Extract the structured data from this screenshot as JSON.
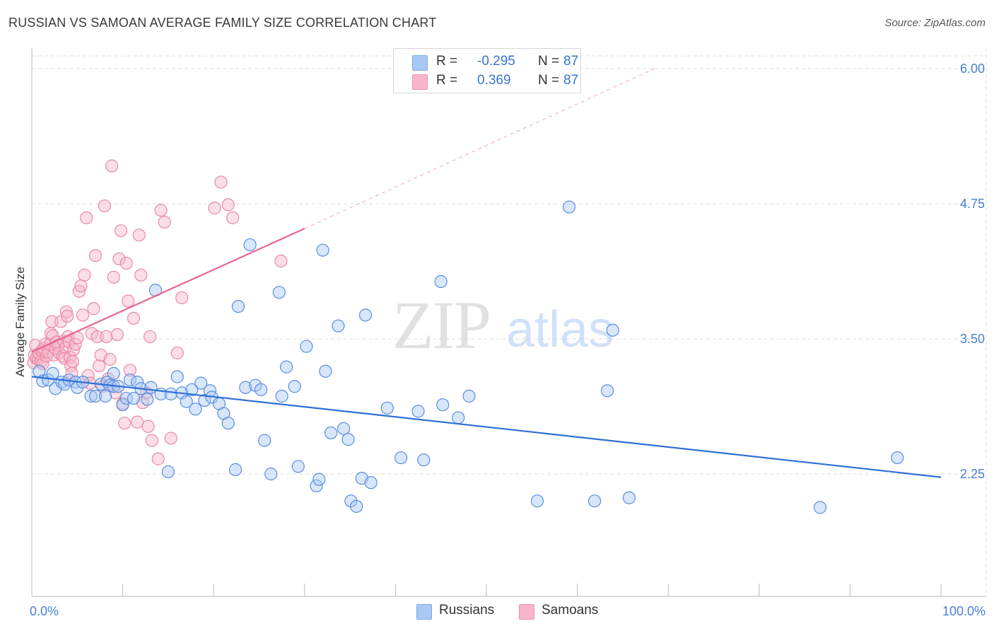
{
  "title": "RUSSIAN VS SAMOAN AVERAGE FAMILY SIZE CORRELATION CHART",
  "source": "Source: ZipAtlas.com",
  "watermark": {
    "zip": "ZIP",
    "atlas": "atlas"
  },
  "legend_top": {
    "rows": [
      {
        "r_label": "R =",
        "r_value": "-0.295",
        "n_label": "N =",
        "n_value": "87",
        "color": "#a9c8f3"
      },
      {
        "r_label": "R =",
        "r_value": " 0.369",
        "n_label": "N =",
        "n_value": "87",
        "color": "#f7b6c9"
      }
    ]
  },
  "legend_bottom": [
    {
      "label": "Russians",
      "color": "#a9c8f3"
    },
    {
      "label": "Samoans",
      "color": "#f7b6c9"
    }
  ],
  "colors": {
    "russians_fill": "#a9c8f3",
    "russians_stroke": "#5a8ee0",
    "russians_line": "#2d6fd6",
    "samoans_fill": "#f7b6c9",
    "samoans_stroke": "#e98aa6",
    "samoans_line": "#e8668f",
    "axis_label": "#4a7fd1",
    "grid": "#dedede"
  },
  "chart_data": {
    "type": "scatter",
    "title": "RUSSIAN VS SAMOAN AVERAGE FAMILY SIZE CORRELATION CHART",
    "xlabel": "",
    "ylabel": "Average Family Size",
    "x_tick_labels": [
      "0.0%",
      "100.0%"
    ],
    "y_tick_labels": [
      "2.25",
      "3.50",
      "4.75",
      "6.00"
    ],
    "y_ticks": [
      2.25,
      3.5,
      4.75,
      6.0
    ],
    "xlim": [
      0,
      100
    ],
    "ylim": [
      1.2,
      6.15
    ],
    "grid": true,
    "legend_position": "top-center",
    "series": [
      {
        "name": "Russians",
        "r": -0.295,
        "n": 87,
        "trend": {
          "x": [
            0,
            100
          ],
          "y": [
            3.15,
            2.22
          ]
        },
        "points": [
          [
            0.8,
            3.2
          ],
          [
            1.2,
            3.11
          ],
          [
            1.8,
            3.12
          ],
          [
            2.3,
            3.18
          ],
          [
            2.6,
            3.04
          ],
          [
            3.3,
            3.1
          ],
          [
            3.6,
            3.08
          ],
          [
            4.1,
            3.12
          ],
          [
            4.8,
            3.1
          ],
          [
            5.0,
            3.05
          ],
          [
            5.6,
            3.1
          ],
          [
            6.5,
            2.97
          ],
          [
            7.0,
            2.97
          ],
          [
            7.6,
            3.08
          ],
          [
            8.1,
            2.97
          ],
          [
            8.3,
            3.1
          ],
          [
            8.6,
            3.07
          ],
          [
            9.0,
            3.18
          ],
          [
            9.0,
            3.06
          ],
          [
            9.5,
            3.06
          ],
          [
            10.0,
            2.89
          ],
          [
            10.4,
            2.95
          ],
          [
            10.8,
            3.12
          ],
          [
            11.2,
            2.95
          ],
          [
            11.6,
            3.1
          ],
          [
            12.0,
            3.04
          ],
          [
            12.7,
            2.94
          ],
          [
            13.1,
            3.05
          ],
          [
            13.6,
            3.95
          ],
          [
            14.2,
            2.99
          ],
          [
            15.0,
            2.27
          ],
          [
            15.3,
            2.99
          ],
          [
            16.0,
            3.15
          ],
          [
            16.5,
            3.0
          ],
          [
            17.0,
            2.92
          ],
          [
            17.6,
            3.03
          ],
          [
            18.0,
            2.85
          ],
          [
            18.6,
            3.09
          ],
          [
            19.0,
            2.93
          ],
          [
            19.6,
            3.02
          ],
          [
            19.8,
            2.96
          ],
          [
            20.6,
            2.9
          ],
          [
            21.1,
            2.81
          ],
          [
            21.6,
            2.72
          ],
          [
            22.4,
            2.29
          ],
          [
            22.7,
            3.8
          ],
          [
            23.5,
            3.05
          ],
          [
            24.0,
            4.37
          ],
          [
            24.6,
            3.07
          ],
          [
            25.2,
            3.03
          ],
          [
            25.6,
            2.56
          ],
          [
            26.3,
            2.25
          ],
          [
            27.2,
            3.93
          ],
          [
            27.5,
            2.97
          ],
          [
            28.0,
            3.24
          ],
          [
            28.9,
            3.06
          ],
          [
            29.3,
            2.32
          ],
          [
            30.2,
            3.43
          ],
          [
            31.3,
            2.14
          ],
          [
            31.6,
            2.2
          ],
          [
            32.0,
            4.32
          ],
          [
            32.3,
            3.2
          ],
          [
            32.9,
            2.63
          ],
          [
            33.7,
            3.62
          ],
          [
            34.3,
            2.67
          ],
          [
            34.8,
            2.57
          ],
          [
            35.1,
            2.0
          ],
          [
            35.7,
            1.95
          ],
          [
            36.3,
            2.21
          ],
          [
            36.7,
            3.72
          ],
          [
            37.3,
            2.17
          ],
          [
            39.1,
            2.86
          ],
          [
            40.6,
            2.4
          ],
          [
            42.5,
            2.83
          ],
          [
            43.1,
            2.38
          ],
          [
            45.0,
            4.03
          ],
          [
            45.2,
            2.89
          ],
          [
            46.9,
            2.77
          ],
          [
            48.1,
            2.97
          ],
          [
            55.6,
            2.0
          ],
          [
            59.1,
            4.72
          ],
          [
            61.9,
            2.0
          ],
          [
            63.3,
            3.02
          ],
          [
            63.9,
            3.58
          ],
          [
            65.7,
            2.03
          ],
          [
            86.7,
            1.94
          ],
          [
            95.2,
            2.4
          ]
        ]
      },
      {
        "name": "Samoans",
        "r": 0.369,
        "n": 87,
        "trend": {
          "x": [
            0,
            30
          ],
          "y": [
            3.38,
            4.52
          ]
        },
        "trend_extension": {
          "x": [
            30,
            68.5
          ],
          "y": [
            4.52,
            6.0
          ]
        },
        "points": [
          [
            0.2,
            3.28
          ],
          [
            0.3,
            3.35
          ],
          [
            0.4,
            3.44
          ],
          [
            0.5,
            3.32
          ],
          [
            0.7,
            3.31
          ],
          [
            0.8,
            3.36
          ],
          [
            1.0,
            3.29
          ],
          [
            1.1,
            3.39
          ],
          [
            1.2,
            3.27
          ],
          [
            1.3,
            3.41
          ],
          [
            1.5,
            3.45
          ],
          [
            1.6,
            3.34
          ],
          [
            1.8,
            3.38
          ],
          [
            2.0,
            3.45
          ],
          [
            2.1,
            3.55
          ],
          [
            2.2,
            3.66
          ],
          [
            2.3,
            3.53
          ],
          [
            2.4,
            3.35
          ],
          [
            2.6,
            3.41
          ],
          [
            2.7,
            3.47
          ],
          [
            2.9,
            3.44
          ],
          [
            3.0,
            3.37
          ],
          [
            3.2,
            3.66
          ],
          [
            3.4,
            3.34
          ],
          [
            3.5,
            3.48
          ],
          [
            3.6,
            3.32
          ],
          [
            3.7,
            3.42
          ],
          [
            3.8,
            3.75
          ],
          [
            3.9,
            3.71
          ],
          [
            4.0,
            3.52
          ],
          [
            4.1,
            3.47
          ],
          [
            4.2,
            3.33
          ],
          [
            4.3,
            3.25
          ],
          [
            4.4,
            3.18
          ],
          [
            4.5,
            3.29
          ],
          [
            4.6,
            3.4
          ],
          [
            4.8,
            3.45
          ],
          [
            5.0,
            3.51
          ],
          [
            5.2,
            3.94
          ],
          [
            5.4,
            3.99
          ],
          [
            5.6,
            3.72
          ],
          [
            5.8,
            4.09
          ],
          [
            6.0,
            4.62
          ],
          [
            6.2,
            3.16
          ],
          [
            6.4,
            3.09
          ],
          [
            6.6,
            3.55
          ],
          [
            6.8,
            3.78
          ],
          [
            7.0,
            4.27
          ],
          [
            7.2,
            3.52
          ],
          [
            7.4,
            3.25
          ],
          [
            7.6,
            3.35
          ],
          [
            7.8,
            3.06
          ],
          [
            8.0,
            4.73
          ],
          [
            8.2,
            3.52
          ],
          [
            8.4,
            3.13
          ],
          [
            8.6,
            3.31
          ],
          [
            8.8,
            5.1
          ],
          [
            9.0,
            4.07
          ],
          [
            9.2,
            3.0
          ],
          [
            9.4,
            3.54
          ],
          [
            9.6,
            4.24
          ],
          [
            9.8,
            4.5
          ],
          [
            10.0,
            2.9
          ],
          [
            10.2,
            2.72
          ],
          [
            10.4,
            4.2
          ],
          [
            10.6,
            3.85
          ],
          [
            10.8,
            3.21
          ],
          [
            11.2,
            3.69
          ],
          [
            11.6,
            2.73
          ],
          [
            11.8,
            4.46
          ],
          [
            12.0,
            4.09
          ],
          [
            12.2,
            2.91
          ],
          [
            12.6,
            3.0
          ],
          [
            12.8,
            2.69
          ],
          [
            13.0,
            3.52
          ],
          [
            13.2,
            2.56
          ],
          [
            13.9,
            2.39
          ],
          [
            14.2,
            4.69
          ],
          [
            14.6,
            4.58
          ],
          [
            15.3,
            2.58
          ],
          [
            16.0,
            3.37
          ],
          [
            16.5,
            3.88
          ],
          [
            20.1,
            4.71
          ],
          [
            20.8,
            4.95
          ],
          [
            21.6,
            4.74
          ],
          [
            22.1,
            4.62
          ],
          [
            27.4,
            4.22
          ]
        ]
      }
    ]
  }
}
